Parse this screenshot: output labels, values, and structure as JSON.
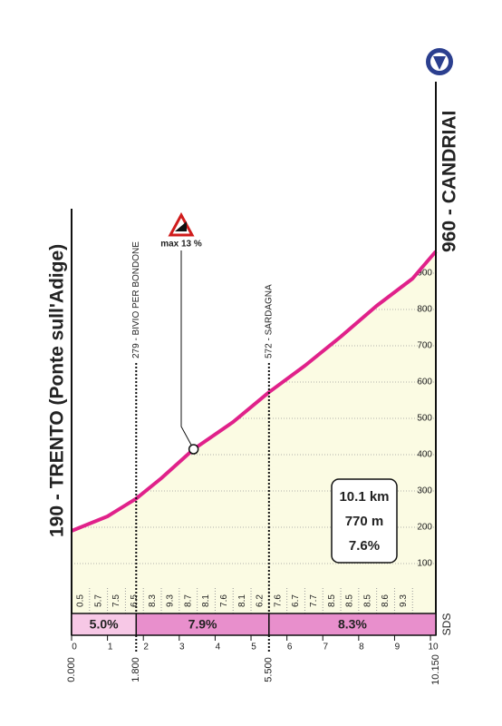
{
  "chart_data": {
    "type": "line",
    "start_label": "190 - TRENTO (Ponte sull'Adige)",
    "finish_label": "960 - CANDRIAI",
    "x": [
      0,
      1,
      1.8,
      2.5,
      3.4,
      4.5,
      5.5,
      6.5,
      7.5,
      8.5,
      9.5,
      10.15
    ],
    "series": [
      {
        "color": "#e0218a",
        "values": [
          190,
          230,
          279,
          335,
          415,
          490,
          572,
          645,
          725,
          810,
          885,
          960
        ]
      }
    ],
    "fill": "#fbfbe3",
    "annotations": [
      {
        "text": "279 - BIVIO PER BONDONE",
        "x": 1.8
      },
      {
        "text": "572 - SARDAGNA",
        "x": 5.5
      }
    ],
    "max_gradient": {
      "text": "max 13 %",
      "point": 4
    },
    "summary": [
      "10.1 km",
      "770 m",
      "7.6%"
    ],
    "gradients_per_500m": [
      0.5,
      5.7,
      7.5,
      6.5,
      8.3,
      9.3,
      8.7,
      8.1,
      7.6,
      8.1,
      6.2,
      7.6,
      6.7,
      7.7,
      8.5,
      8.5,
      8.5,
      8.6,
      9.3
    ],
    "sections": [
      {
        "from": 0,
        "to": 1.8,
        "label": "5.0%",
        "color": "#f7c8e6"
      },
      {
        "from": 1.8,
        "to": 5.5,
        "label": "7.9%",
        "color": "#e88fcc"
      },
      {
        "from": 5.5,
        "to": 10.15,
        "label": "8.3%",
        "color": "#e88fcc"
      }
    ],
    "source_label": "SDS",
    "xlim": [
      0,
      10.15
    ],
    "xticks": [
      0,
      1,
      2,
      3,
      4,
      5,
      6,
      7,
      8,
      9,
      10
    ],
    "km_markers": [
      {
        "value": 0,
        "label": "0.000"
      },
      {
        "value": 1.8,
        "label": "1.800"
      },
      {
        "value": 5.5,
        "label": "5.500"
      },
      {
        "value": 10.15,
        "label": "10.150"
      }
    ],
    "ylim": [
      0,
      1000
    ],
    "yticks": [
      100,
      200,
      300,
      400,
      500,
      600,
      700,
      800,
      900
    ]
  }
}
